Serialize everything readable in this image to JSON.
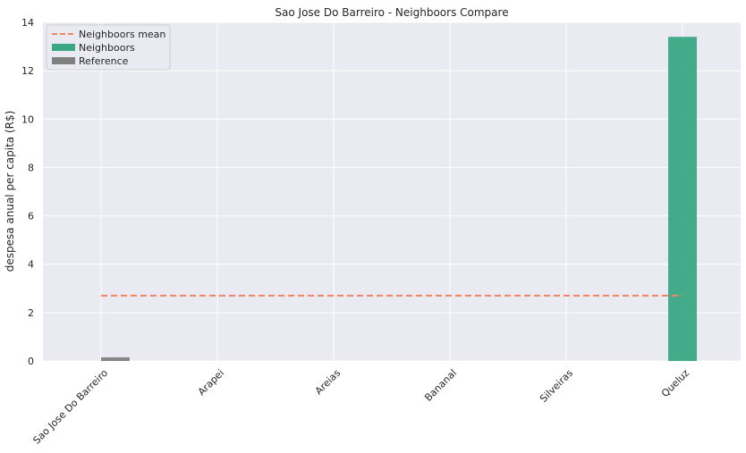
{
  "chart_data": {
    "type": "bar",
    "title": "Sao Jose Do Barreiro - Neighboors Compare",
    "xlabel": "",
    "ylabel": "despesa anual per capita (R$)",
    "categories": [
      "Sao Jose Do Barreiro",
      "Arapei",
      "Areias",
      "Bananal",
      "Silveiras",
      "Queluz"
    ],
    "series": [
      {
        "name": "Reference",
        "color": "#808080",
        "values": [
          0.15,
          0,
          0,
          0,
          0,
          0
        ]
      },
      {
        "name": "Neighboors",
        "color": "#3aa883",
        "values": [
          0,
          0,
          0,
          0,
          0,
          13.4
        ]
      }
    ],
    "mean_line": {
      "name": "Neighboors mean",
      "value": 2.7,
      "color": "#f4845f"
    },
    "ylim": [
      0,
      14
    ],
    "yticks": [
      0,
      2,
      4,
      6,
      8,
      10,
      12,
      14
    ],
    "grid": true,
    "legend_position": "top-left",
    "background": "#eaeaf2"
  }
}
